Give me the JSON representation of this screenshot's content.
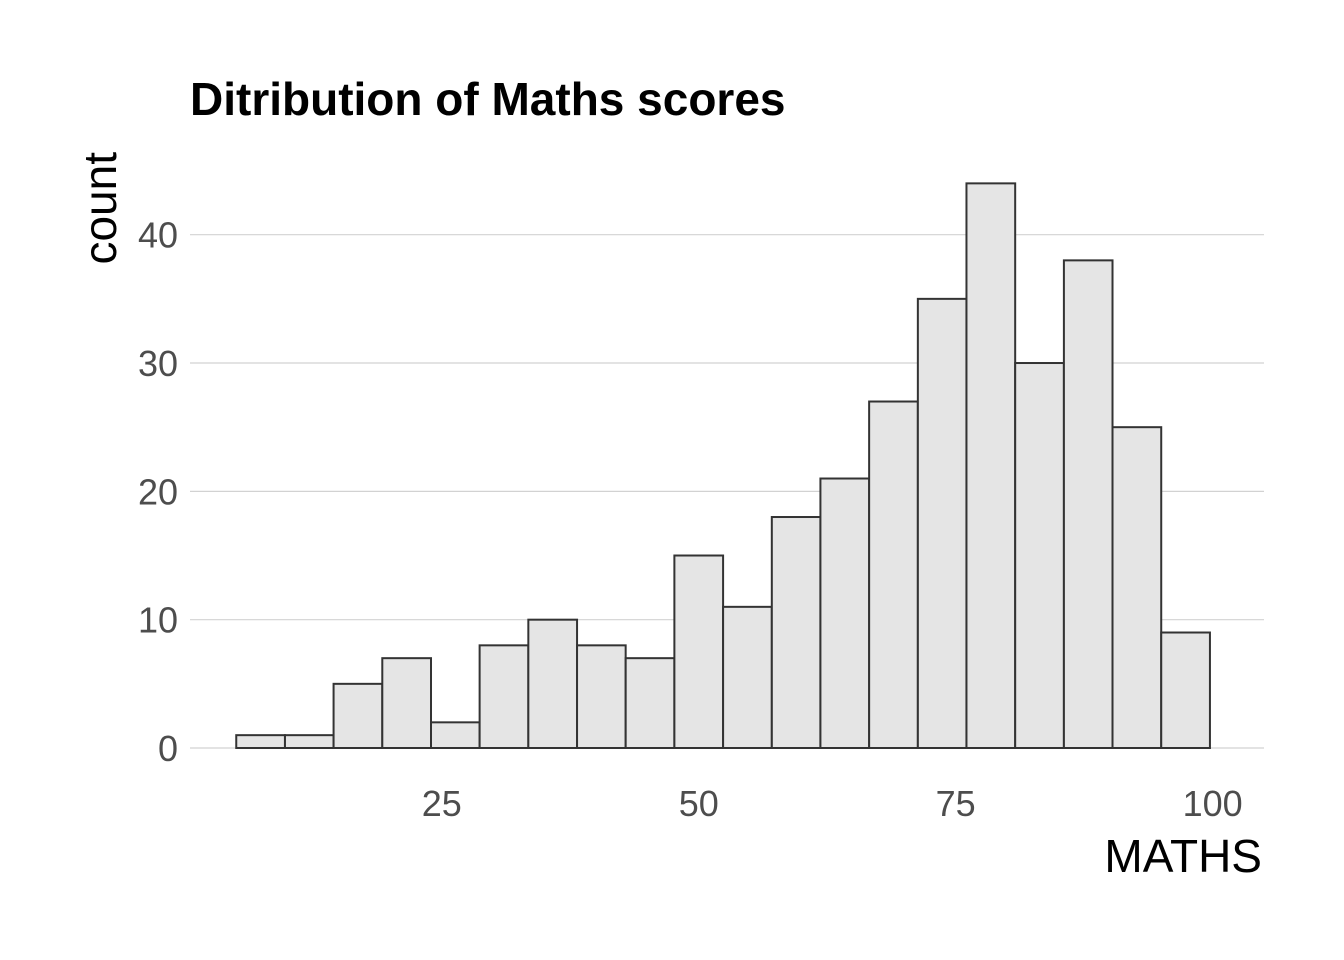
{
  "chart_data": {
    "type": "bar",
    "title": "Ditribution of Maths scores",
    "xlabel": "MATHS",
    "ylabel": "count",
    "bin_width": 4.737,
    "bins": [
      {
        "x0": 5.0,
        "x1": 9.74,
        "count": 1
      },
      {
        "x0": 9.74,
        "x1": 14.47,
        "count": 1
      },
      {
        "x0": 14.47,
        "x1": 19.21,
        "count": 5
      },
      {
        "x0": 19.21,
        "x1": 23.95,
        "count": 7
      },
      {
        "x0": 23.95,
        "x1": 28.68,
        "count": 2
      },
      {
        "x0": 28.68,
        "x1": 33.42,
        "count": 8
      },
      {
        "x0": 33.42,
        "x1": 38.16,
        "count": 10
      },
      {
        "x0": 38.16,
        "x1": 42.89,
        "count": 8
      },
      {
        "x0": 42.89,
        "x1": 47.63,
        "count": 7
      },
      {
        "x0": 47.63,
        "x1": 52.37,
        "count": 15
      },
      {
        "x0": 52.37,
        "x1": 57.11,
        "count": 11
      },
      {
        "x0": 57.11,
        "x1": 61.84,
        "count": 18
      },
      {
        "x0": 61.84,
        "x1": 66.58,
        "count": 21
      },
      {
        "x0": 66.58,
        "x1": 71.32,
        "count": 27
      },
      {
        "x0": 71.32,
        "x1": 76.05,
        "count": 35
      },
      {
        "x0": 76.05,
        "x1": 80.79,
        "count": 44
      },
      {
        "x0": 80.79,
        "x1": 85.53,
        "count": 30
      },
      {
        "x0": 85.53,
        "x1": 90.26,
        "count": 38
      },
      {
        "x0": 90.26,
        "x1": 95.0,
        "count": 25
      },
      {
        "x0": 95.0,
        "x1": 99.74,
        "count": 9
      }
    ],
    "xlim": [
      0.5,
      105.0
    ],
    "ylim": [
      0,
      46.6
    ],
    "x_ticks": [
      25,
      50,
      75,
      100
    ],
    "y_ticks": [
      0,
      10,
      20,
      30,
      40
    ],
    "grid": true,
    "colors": {
      "bar_fill": "#e5e5e5",
      "bar_outline": "#333333",
      "grid": "#d2d2d2",
      "tick_text": "#4d4d4d",
      "title_text": "#000000"
    }
  }
}
